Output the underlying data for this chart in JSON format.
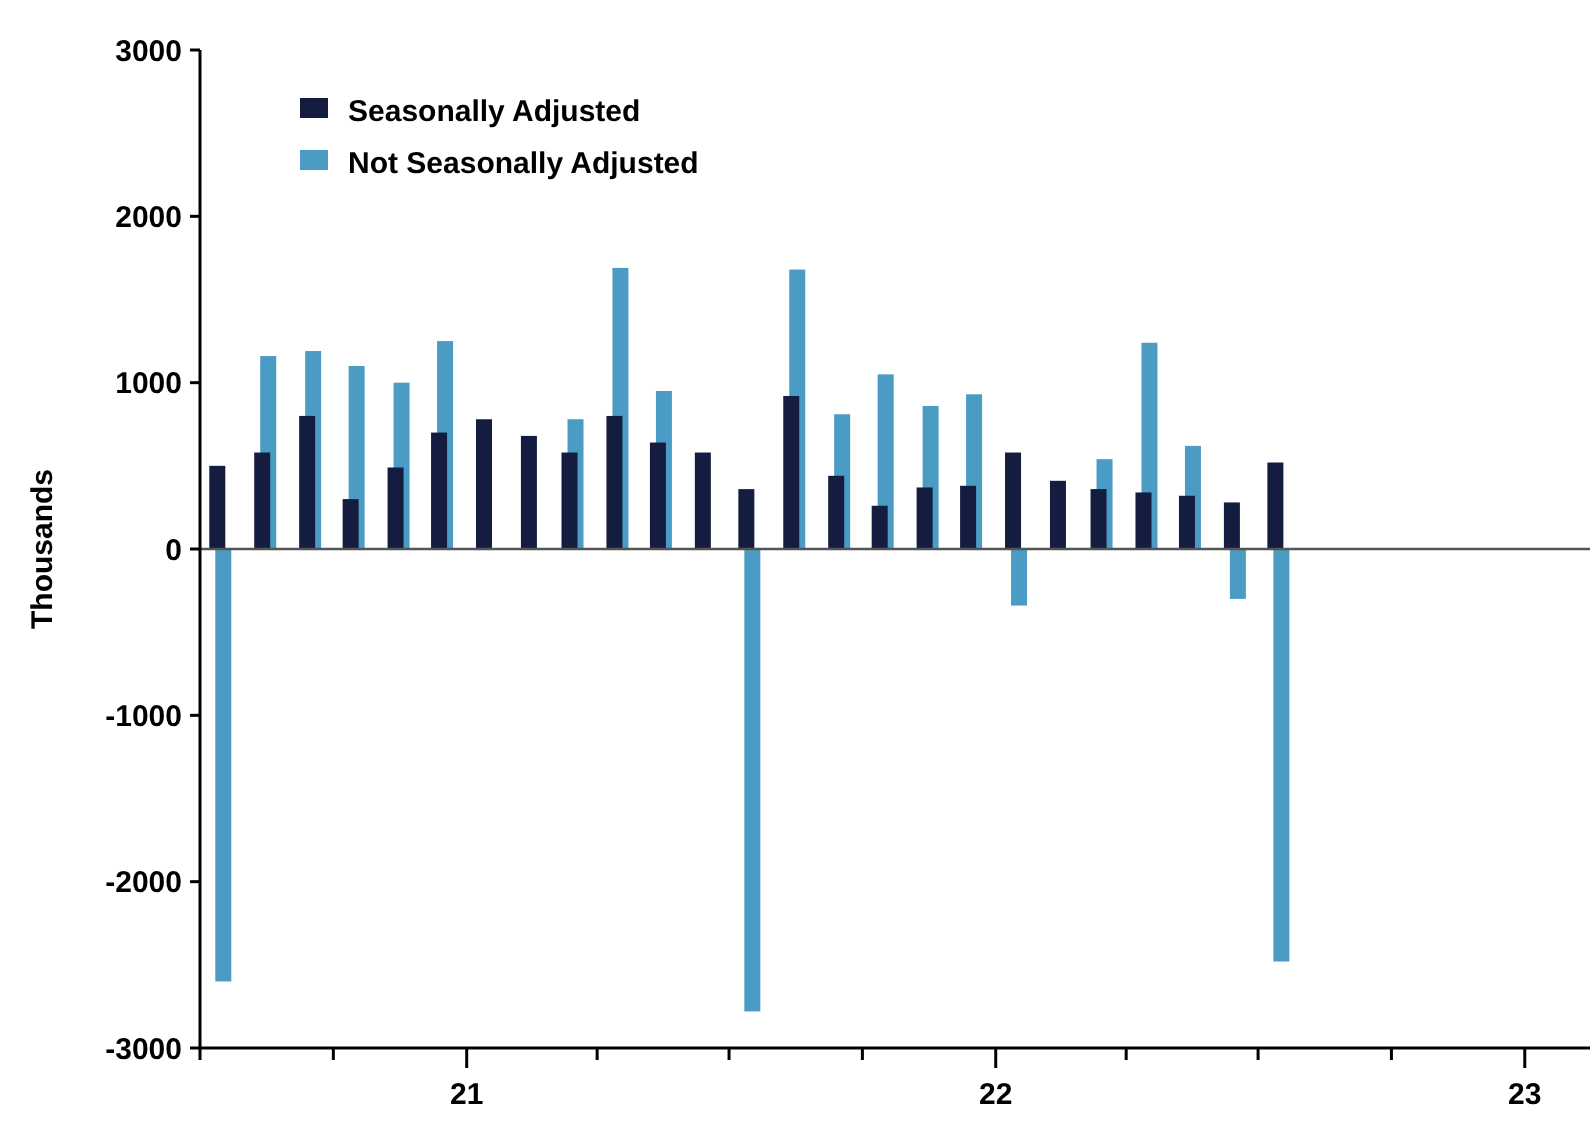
{
  "chart_data": {
    "type": "bar",
    "ylabel": "Thousands",
    "x": [
      "2020-07-15",
      "2020-08-15",
      "2020-09-15",
      "2020-10-15",
      "2020-11-15",
      "2020-12-15",
      "2021-01-15",
      "2021-02-15",
      "2021-03-15",
      "2021-04-15",
      "2021-05-15",
      "2021-06-15",
      "2021-07-15",
      "2021-08-15",
      "2021-09-15",
      "2021-10-15",
      "2021-11-15",
      "2021-12-15",
      "2022-01-15",
      "2022-02-15",
      "2022-03-15",
      "2022-04-15",
      "2022-05-15",
      "2022-06-15",
      "2022-07-15"
    ],
    "series": [
      {
        "name": "Seasonally Adjusted",
        "color": "#141c3f",
        "values": [
          500,
          580,
          800,
          300,
          490,
          700,
          780,
          680,
          580,
          800,
          640,
          580,
          360,
          920,
          440,
          260,
          370,
          380,
          580,
          410,
          360,
          340,
          320,
          280,
          520
        ]
      },
      {
        "name": "Not Seasonally Adjusted",
        "color": "#4a9cc4",
        "values": [
          -2600,
          1160,
          1190,
          1100,
          1000,
          1250,
          null,
          null,
          780,
          1690,
          950,
          null,
          -2780,
          1680,
          810,
          1050,
          860,
          930,
          -340,
          null,
          540,
          1240,
          620,
          -300,
          -2480
        ]
      }
    ],
    "ylim": [
      -3000,
      3000
    ],
    "yticks": [
      -3000,
      -2000,
      -1000,
      0,
      1000,
      2000,
      3000
    ],
    "xlim": [
      "2020-07-01",
      "2023-02-15"
    ],
    "xticks": [
      {
        "value": "2020-07",
        "label": null
      },
      {
        "value": "2020-10",
        "label": null
      },
      {
        "value": "2021-01",
        "label": "21"
      },
      {
        "value": "2021-04",
        "label": null
      },
      {
        "value": "2021-07",
        "label": null
      },
      {
        "value": "2021-10",
        "label": null
      },
      {
        "value": "2022-01",
        "label": "22"
      },
      {
        "value": "2022-04",
        "label": null
      },
      {
        "value": "2022-07",
        "label": null
      },
      {
        "value": "2022-10",
        "label": null
      },
      {
        "value": "2023-01",
        "label": "23"
      }
    ],
    "grid": false,
    "ref_lines": [
      {
        "axis": "y",
        "value": 0
      }
    ],
    "legend": "top left"
  }
}
